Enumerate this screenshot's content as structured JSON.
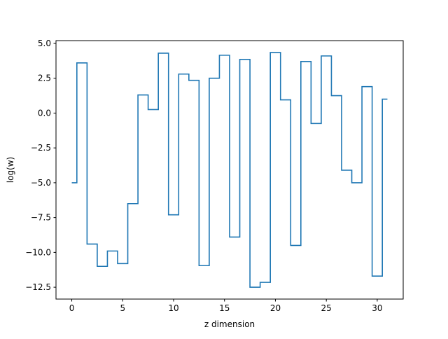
{
  "chart_data": {
    "type": "line",
    "drawstyle": "steps-mid",
    "title": "",
    "xlabel": "z dimension",
    "ylabel": "log(w)",
    "xlim": [
      -1.55,
      32.55
    ],
    "ylim": [
      -13.35,
      5.2
    ],
    "xticks": [
      0,
      5,
      10,
      15,
      20,
      25,
      30
    ],
    "xtick_labels": [
      "0",
      "5",
      "10",
      "15",
      "20",
      "25",
      "30"
    ],
    "yticks": [
      -12.5,
      -10.0,
      -7.5,
      -5.0,
      -2.5,
      0.0,
      2.5,
      5.0
    ],
    "ytick_labels": [
      "−12.5",
      "−10.0",
      "−7.5",
      "−5.0",
      "−2.5",
      "0.0",
      "2.5",
      "5.0"
    ],
    "grid": false,
    "legend": "none",
    "series_color": "#1f77b4",
    "x": [
      0,
      1,
      2,
      3,
      4,
      5,
      6,
      7,
      8,
      9,
      10,
      11,
      12,
      13,
      14,
      15,
      16,
      17,
      18,
      19,
      20,
      21,
      22,
      23,
      24,
      25,
      26,
      27,
      28,
      29,
      30,
      31
    ],
    "y": [
      -5.0,
      3.6,
      -9.4,
      -11.0,
      -9.9,
      -10.8,
      -6.5,
      1.3,
      0.25,
      4.3,
      -7.3,
      2.8,
      2.35,
      -10.95,
      2.5,
      4.15,
      -8.9,
      3.85,
      -12.5,
      -12.15,
      4.35,
      0.95,
      -9.5,
      3.7,
      -0.75,
      4.1,
      1.25,
      -4.1,
      -5.0,
      1.9,
      -11.7,
      1.0
    ]
  }
}
